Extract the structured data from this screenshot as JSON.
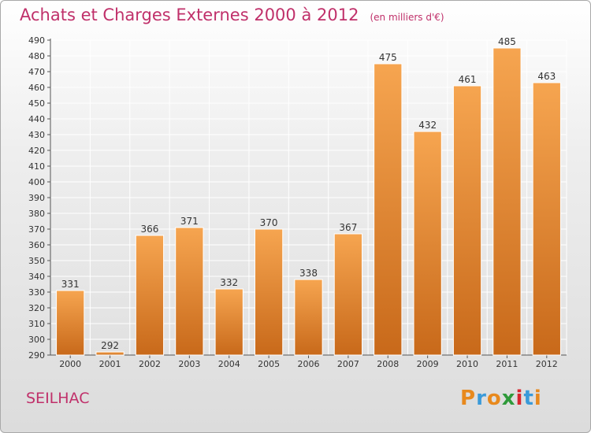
{
  "header": {
    "title": "Achats et Charges Externes 2000 à 2012",
    "subtitle": "(en milliers d'€)"
  },
  "footer": {
    "commune": "SEILHAC",
    "logo_text": "Proxiti",
    "logo_colors": [
      "#e8891d",
      "#3a9ad9",
      "#e8891d",
      "#2f9a3a",
      "#d8262e",
      "#3a9ad9",
      "#e8891d"
    ]
  },
  "colors": {
    "title": "#c0306a",
    "bar_top": "#f6a550",
    "bar_bottom": "#c8691a"
  },
  "chart_data": {
    "type": "bar",
    "title": "Achats et Charges Externes 2000 à 2012",
    "subtitle": "(en milliers d'€)",
    "xlabel": "",
    "ylabel": "",
    "categories": [
      "2000",
      "2001",
      "2002",
      "2003",
      "2004",
      "2005",
      "2006",
      "2007",
      "2008",
      "2009",
      "2010",
      "2011",
      "2012"
    ],
    "values": [
      331,
      292,
      366,
      371,
      332,
      370,
      338,
      367,
      475,
      432,
      461,
      485,
      463
    ],
    "ylim": [
      290,
      490
    ],
    "ytick_step": 10,
    "grid": true,
    "data_labels": true
  }
}
